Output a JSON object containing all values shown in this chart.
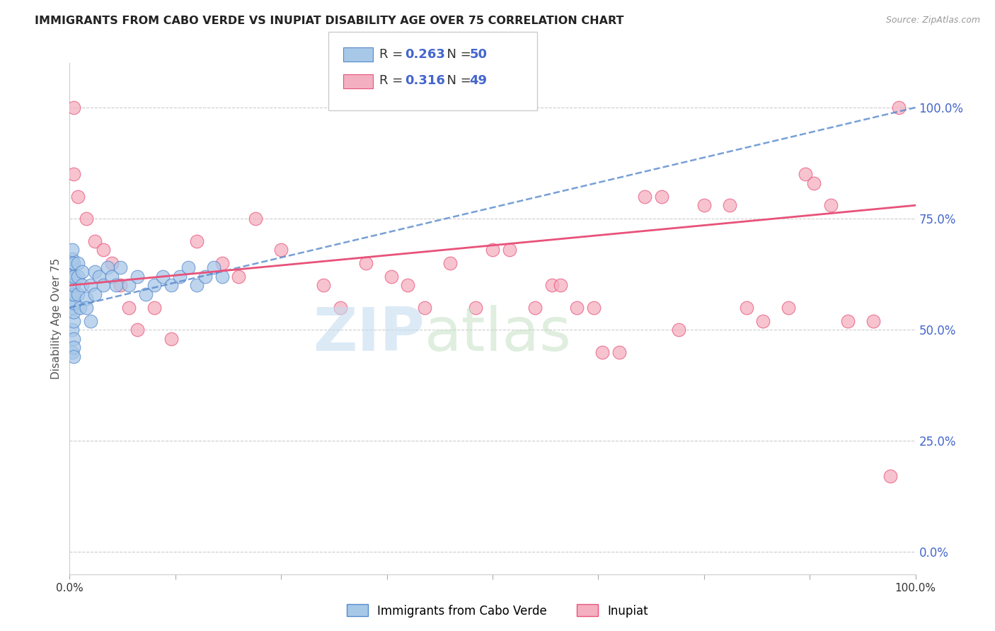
{
  "title": "IMMIGRANTS FROM CABO VERDE VS INUPIAT DISABILITY AGE OVER 75 CORRELATION CHART",
  "source": "Source: ZipAtlas.com",
  "ylabel": "Disability Age Over 75",
  "legend_label1": "Immigrants from Cabo Verde",
  "legend_label2": "Inupiat",
  "R1": 0.263,
  "N1": 50,
  "R2": 0.316,
  "N2": 49,
  "color_blue": "#a8c8e8",
  "color_pink": "#f4afc0",
  "color_line_blue": "#5588cc",
  "color_line_pink": "#e8527a",
  "blue_x": [
    0.3,
    0.3,
    0.3,
    0.3,
    0.3,
    0.3,
    0.3,
    0.3,
    0.3,
    0.3,
    0.5,
    0.5,
    0.5,
    0.5,
    0.5,
    0.5,
    0.5,
    0.5,
    0.5,
    0.5,
    1.0,
    1.0,
    1.0,
    1.2,
    1.5,
    1.5,
    2.0,
    2.0,
    2.5,
    2.5,
    3.0,
    3.0,
    3.5,
    4.0,
    4.5,
    5.0,
    5.5,
    6.0,
    7.0,
    8.0,
    9.0,
    10.0,
    11.0,
    12.0,
    13.0,
    14.0,
    15.0,
    16.0,
    17.0,
    18.0
  ],
  "blue_y": [
    58,
    60,
    62,
    64,
    65,
    66,
    50,
    55,
    45,
    68,
    52,
    54,
    56,
    58,
    60,
    62,
    48,
    46,
    44,
    65,
    58,
    62,
    65,
    55,
    60,
    63,
    57,
    55,
    60,
    52,
    63,
    58,
    62,
    60,
    64,
    62,
    60,
    64,
    60,
    62,
    58,
    60,
    62,
    60,
    62,
    64,
    60,
    62,
    64,
    62
  ],
  "pink_x": [
    0.5,
    0.5,
    1.0,
    2.0,
    3.0,
    4.0,
    5.0,
    6.0,
    7.0,
    8.0,
    10.0,
    12.0,
    15.0,
    18.0,
    20.0,
    22.0,
    25.0,
    30.0,
    32.0,
    35.0,
    38.0,
    40.0,
    42.0,
    45.0,
    48.0,
    50.0,
    52.0,
    55.0,
    57.0,
    58.0,
    60.0,
    62.0,
    63.0,
    65.0,
    68.0,
    70.0,
    72.0,
    75.0,
    78.0,
    80.0,
    82.0,
    85.0,
    87.0,
    88.0,
    90.0,
    92.0,
    95.0,
    97.0,
    98.0
  ],
  "pink_y": [
    100.0,
    85.0,
    80.0,
    75.0,
    70.0,
    68.0,
    65.0,
    60.0,
    55.0,
    50.0,
    55.0,
    48.0,
    70.0,
    65.0,
    62.0,
    75.0,
    68.0,
    60.0,
    55.0,
    65.0,
    62.0,
    60.0,
    55.0,
    65.0,
    55.0,
    68.0,
    68.0,
    55.0,
    60.0,
    60.0,
    55.0,
    55.0,
    45.0,
    45.0,
    80.0,
    80.0,
    50.0,
    78.0,
    78.0,
    55.0,
    52.0,
    55.0,
    85.0,
    83.0,
    78.0,
    52.0,
    52.0,
    17.0,
    100.0
  ],
  "ytick_values": [
    0,
    25,
    50,
    75,
    100
  ],
  "xlim": [
    0,
    100
  ],
  "ylim": [
    -5,
    110
  ]
}
